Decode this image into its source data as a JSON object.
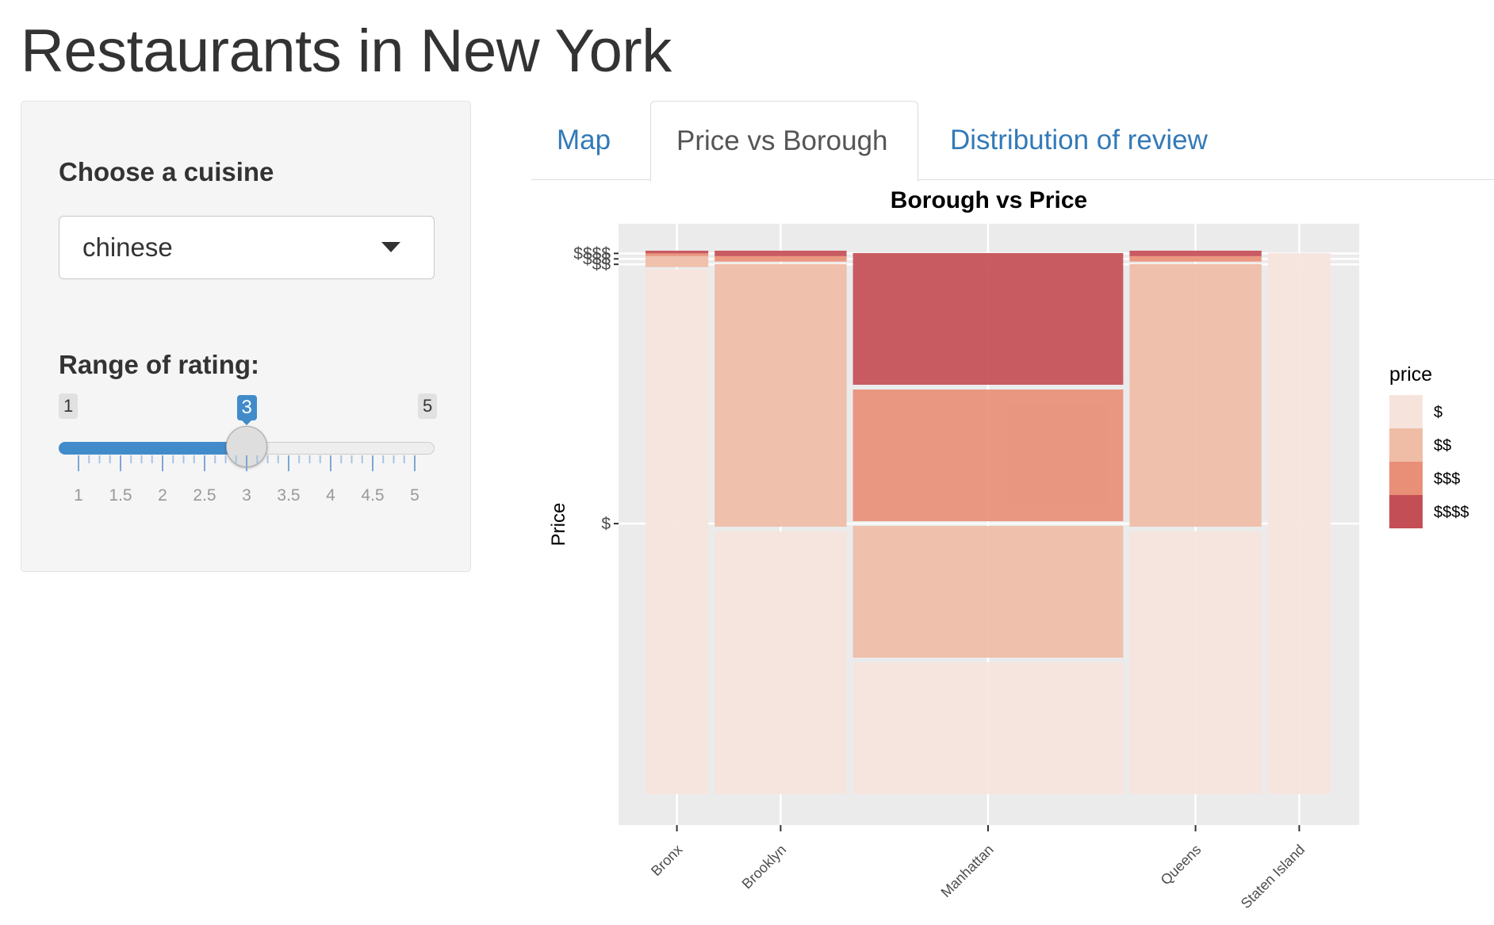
{
  "page": {
    "title": "Restaurants in New York"
  },
  "sidebar": {
    "cuisine": {
      "label": "Choose a cuisine",
      "value": "chinese"
    },
    "rating": {
      "label": "Range of rating:",
      "min": 1,
      "max": 5,
      "value": 3,
      "min_label": "1",
      "max_label": "5",
      "value_label": "3",
      "ticks": [
        "1",
        "1.5",
        "2",
        "2.5",
        "3",
        "3.5",
        "4",
        "4.5",
        "5"
      ]
    }
  },
  "tabs": [
    {
      "label": "Map",
      "active": false
    },
    {
      "label": "Price vs Borough",
      "active": true
    },
    {
      "label": "Distribution of review",
      "active": false
    }
  ],
  "chart_data": {
    "type": "mosaic",
    "title": "Borough vs Price",
    "ylabel": "Price",
    "xlabel": "",
    "categories": [
      "Bronx",
      "Brooklyn",
      "Manhattan",
      "Queens",
      "Staten Island"
    ],
    "category_widths": [
      0.1,
      0.2,
      0.4,
      0.2,
      0.1
    ],
    "price_levels": [
      "$",
      "$$",
      "$$$",
      "$$$$"
    ],
    "fractions": {
      "Bronx": [
        0.97,
        0.02,
        0.005,
        0.005
      ],
      "Brooklyn": [
        0.49,
        0.49,
        0.01,
        0.01
      ],
      "Manhattan": [
        0.25,
        0.25,
        0.25,
        0.25
      ],
      "Queens": [
        0.49,
        0.49,
        0.01,
        0.01
      ],
      "Staten Island": [
        1.0,
        0.0,
        0.0,
        0.0
      ]
    },
    "y_ticks": [
      "$",
      "$$",
      "$$$",
      "$$$$"
    ],
    "y_tick_values": [
      0.5,
      0.975,
      0.985,
      0.995
    ],
    "legend": {
      "title": "price",
      "placement": "right",
      "entries": [
        "$",
        "$$",
        "$$$",
        "$$$$"
      ],
      "colors": [
        "#f6e4dc",
        "#efbca6",
        "#e98f77",
        "#c44e55"
      ]
    },
    "panel_color": "#ebebeb",
    "grid": true
  },
  "colors": {
    "accent": "#428bca",
    "link": "#337ab7"
  }
}
